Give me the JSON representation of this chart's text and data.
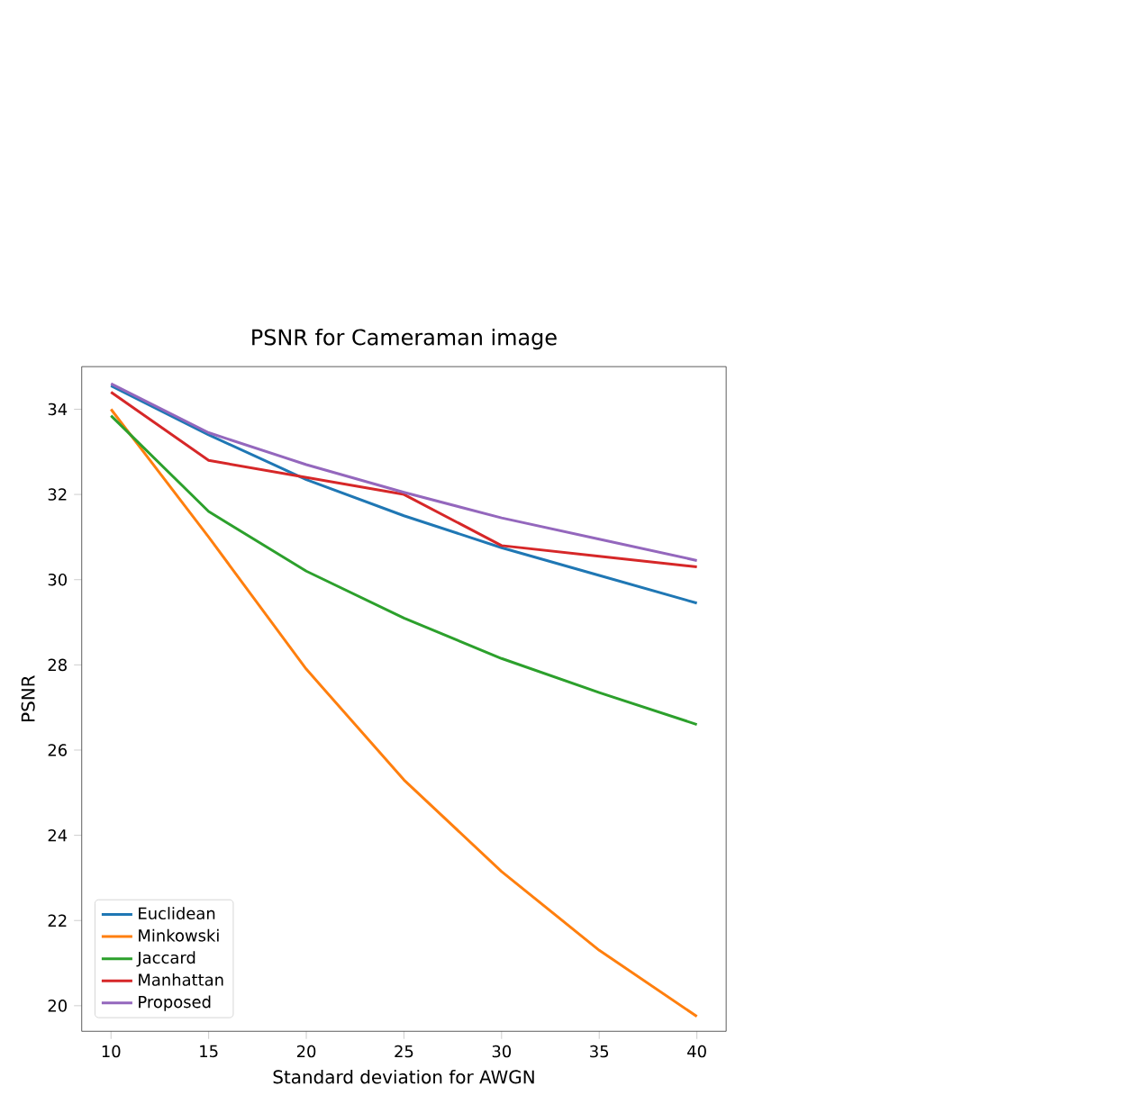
{
  "chart_data": {
    "type": "line",
    "title": "PSNR for Cameraman image",
    "xlabel": "Standard deviation for AWGN",
    "ylabel": "PSNR",
    "x": [
      10,
      15,
      20,
      25,
      30,
      35,
      40
    ],
    "series": [
      {
        "name": "Euclidean",
        "color": "#1f77b4",
        "values": [
          34.55,
          33.4,
          32.35,
          31.5,
          30.75,
          30.1,
          29.45
        ]
      },
      {
        "name": "Minkowski",
        "color": "#ff7f0e",
        "values": [
          34.0,
          31.0,
          27.9,
          25.3,
          23.15,
          21.3,
          19.75
        ]
      },
      {
        "name": "Jaccard",
        "color": "#2ca02c",
        "values": [
          33.85,
          31.6,
          30.2,
          29.1,
          28.15,
          27.35,
          26.6
        ]
      },
      {
        "name": "Manhattan",
        "color": "#d62728",
        "values": [
          34.4,
          32.8,
          32.4,
          32.0,
          30.8,
          30.55,
          30.3
        ]
      },
      {
        "name": "Proposed",
        "color": "#9467bd",
        "values": [
          34.6,
          33.45,
          32.7,
          32.05,
          31.45,
          30.95,
          30.45
        ]
      }
    ],
    "xlim": [
      8.5,
      41.5
    ],
    "ylim": [
      19.4,
      35.0
    ],
    "xticks": [
      10,
      15,
      20,
      25,
      30,
      35,
      40
    ],
    "yticks": [
      20,
      22,
      24,
      26,
      28,
      30,
      32,
      34
    ],
    "legend": "bottom left",
    "grid": false,
    "marker": "none",
    "line_style": "solid"
  }
}
